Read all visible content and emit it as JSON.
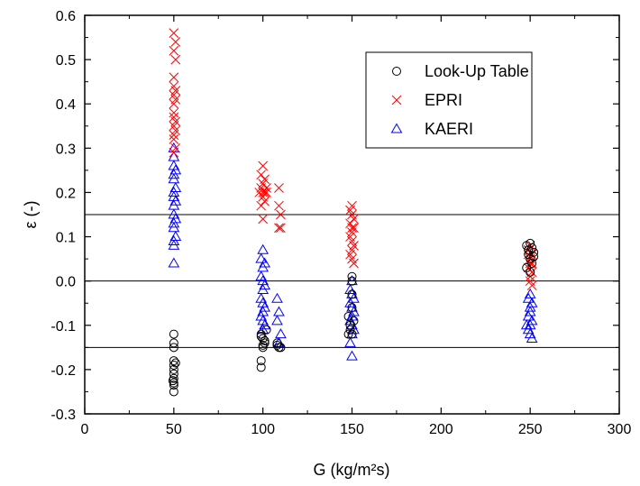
{
  "chart_data": {
    "type": "scatter",
    "title": "",
    "xlabel": "G (kg/m²s)",
    "ylabel": "ε (-)",
    "xlim": [
      0,
      300
    ],
    "ylim": [
      -0.3,
      0.6
    ],
    "xticks": [
      "0",
      "50",
      "100",
      "150",
      "200",
      "250",
      "300"
    ],
    "yticks": [
      "-0.3",
      "-0.2",
      "-0.1",
      "0.0",
      "0.1",
      "0.2",
      "0.3",
      "0.4",
      "0.5",
      "0.6"
    ],
    "grid": false,
    "legend": "top-right",
    "reference_lines_y": [
      0.15,
      0.0,
      -0.15
    ],
    "series": [
      {
        "name": "Look-Up Table",
        "marker": "circle",
        "color": "#000000",
        "points": [
          [
            50,
            -0.12
          ],
          [
            50,
            -0.14
          ],
          [
            50,
            -0.15
          ],
          [
            50,
            -0.18
          ],
          [
            50,
            -0.19
          ],
          [
            50,
            -0.2
          ],
          [
            50,
            -0.21
          ],
          [
            50,
            -0.22
          ],
          [
            50,
            -0.23
          ],
          [
            50,
            -0.235
          ],
          [
            50,
            -0.25
          ],
          [
            51,
            -0.185
          ],
          [
            49.5,
            -0.225
          ],
          [
            99,
            -0.12
          ],
          [
            99,
            -0.125
          ],
          [
            99,
            -0.18
          ],
          [
            99,
            -0.195
          ],
          [
            100,
            -0.13
          ],
          [
            100,
            -0.145
          ],
          [
            100,
            -0.15
          ],
          [
            101,
            -0.135
          ],
          [
            101,
            -0.14
          ],
          [
            102,
            -0.11
          ],
          [
            108,
            -0.14
          ],
          [
            109,
            -0.15
          ],
          [
            110,
            -0.15
          ],
          [
            108,
            -0.145
          ],
          [
            148,
            -0.08
          ],
          [
            148,
            -0.12
          ],
          [
            149,
            -0.1
          ],
          [
            149,
            -0.11
          ],
          [
            150,
            -0.03
          ],
          [
            150,
            0.0
          ],
          [
            150,
            0.01
          ],
          [
            150,
            -0.06
          ],
          [
            150,
            -0.12
          ],
          [
            151,
            -0.09
          ],
          [
            248,
            0.08
          ],
          [
            249,
            0.07
          ],
          [
            249,
            0.06
          ],
          [
            250,
            0.085
          ],
          [
            250,
            0.05
          ],
          [
            250,
            0.02
          ],
          [
            251,
            0.075
          ],
          [
            251,
            0.04
          ],
          [
            252,
            0.065
          ],
          [
            252,
            0.055
          ],
          [
            248,
            0.03
          ]
        ]
      },
      {
        "name": "EPRI",
        "marker": "x",
        "color": "#ff0000",
        "points": [
          [
            50,
            0.56
          ],
          [
            50,
            0.52
          ],
          [
            51,
            0.5
          ],
          [
            51,
            0.54
          ],
          [
            50,
            0.46
          ],
          [
            50,
            0.44
          ],
          [
            51,
            0.43
          ],
          [
            50,
            0.42
          ],
          [
            51,
            0.41
          ],
          [
            50,
            0.4
          ],
          [
            50,
            0.38
          ],
          [
            50,
            0.37
          ],
          [
            51,
            0.36
          ],
          [
            50,
            0.35
          ],
          [
            51,
            0.34
          ],
          [
            50,
            0.33
          ],
          [
            50,
            0.32
          ],
          [
            51,
            0.3
          ],
          [
            50,
            0.29
          ],
          [
            100,
            0.26
          ],
          [
            99,
            0.24
          ],
          [
            101,
            0.23
          ],
          [
            100,
            0.22
          ],
          [
            99,
            0.21
          ],
          [
            100,
            0.2
          ],
          [
            101,
            0.2
          ],
          [
            102,
            0.21
          ],
          [
            98,
            0.2
          ],
          [
            100,
            0.19
          ],
          [
            101,
            0.18
          ],
          [
            99,
            0.17
          ],
          [
            100,
            0.14
          ],
          [
            102,
            0.2
          ],
          [
            109,
            0.21
          ],
          [
            109,
            0.17
          ],
          [
            110,
            0.15
          ],
          [
            109,
            0.12
          ],
          [
            110,
            0.12
          ],
          [
            150,
            0.17
          ],
          [
            149,
            0.16
          ],
          [
            150,
            0.15
          ],
          [
            151,
            0.14
          ],
          [
            149,
            0.13
          ],
          [
            150,
            0.12
          ],
          [
            151,
            0.12
          ],
          [
            150,
            0.11
          ],
          [
            149,
            0.1
          ],
          [
            150,
            0.09
          ],
          [
            151,
            0.08
          ],
          [
            150,
            0.07
          ],
          [
            149,
            0.06
          ],
          [
            150,
            0.05
          ],
          [
            151,
            0.04
          ],
          [
            250,
            0.08
          ],
          [
            249,
            0.07
          ],
          [
            251,
            0.06
          ],
          [
            250,
            0.05
          ],
          [
            250,
            0.04
          ],
          [
            249,
            0.03
          ],
          [
            251,
            0.02
          ],
          [
            250,
            0.01
          ],
          [
            250,
            0.0
          ],
          [
            251,
            -0.01
          ],
          [
            249,
            0.06
          ],
          [
            251,
            0.04
          ]
        ]
      },
      {
        "name": "KAERI",
        "marker": "triangle",
        "color": "#0000ff",
        "points": [
          [
            50,
            0.3
          ],
          [
            50,
            0.28
          ],
          [
            50,
            0.26
          ],
          [
            51,
            0.25
          ],
          [
            50,
            0.24
          ],
          [
            50,
            0.23
          ],
          [
            51,
            0.21
          ],
          [
            50,
            0.2
          ],
          [
            50,
            0.19
          ],
          [
            51,
            0.18
          ],
          [
            50,
            0.17
          ],
          [
            50,
            0.15
          ],
          [
            51,
            0.14
          ],
          [
            50,
            0.13
          ],
          [
            50,
            0.12
          ],
          [
            51,
            0.1
          ],
          [
            50,
            0.09
          ],
          [
            50,
            0.08
          ],
          [
            50,
            0.04
          ],
          [
            100,
            0.07
          ],
          [
            99,
            0.05
          ],
          [
            101,
            0.04
          ],
          [
            100,
            0.03
          ],
          [
            99,
            0.01
          ],
          [
            100,
            0.0
          ],
          [
            101,
            -0.01
          ],
          [
            100,
            -0.02
          ],
          [
            99,
            -0.04
          ],
          [
            100,
            -0.05
          ],
          [
            101,
            -0.06
          ],
          [
            100,
            -0.07
          ],
          [
            99,
            -0.08
          ],
          [
            100,
            -0.09
          ],
          [
            101,
            -0.1
          ],
          [
            100,
            -0.11
          ],
          [
            108,
            -0.04
          ],
          [
            109,
            -0.07
          ],
          [
            108,
            -0.09
          ],
          [
            110,
            -0.12
          ],
          [
            109,
            -0.14
          ],
          [
            150,
            0.0
          ],
          [
            149,
            -0.02
          ],
          [
            150,
            -0.03
          ],
          [
            151,
            -0.04
          ],
          [
            149,
            -0.05
          ],
          [
            150,
            -0.06
          ],
          [
            151,
            -0.07
          ],
          [
            150,
            -0.08
          ],
          [
            149,
            -0.09
          ],
          [
            150,
            -0.1
          ],
          [
            151,
            -0.11
          ],
          [
            150,
            -0.12
          ],
          [
            149,
            -0.14
          ],
          [
            150,
            -0.17
          ],
          [
            250,
            -0.03
          ],
          [
            249,
            -0.04
          ],
          [
            251,
            -0.05
          ],
          [
            250,
            -0.06
          ],
          [
            250,
            -0.07
          ],
          [
            249,
            -0.08
          ],
          [
            251,
            -0.09
          ],
          [
            250,
            -0.1
          ],
          [
            249,
            -0.11
          ],
          [
            250,
            -0.12
          ],
          [
            251,
            -0.13
          ],
          [
            248,
            -0.1
          ]
        ]
      }
    ]
  }
}
